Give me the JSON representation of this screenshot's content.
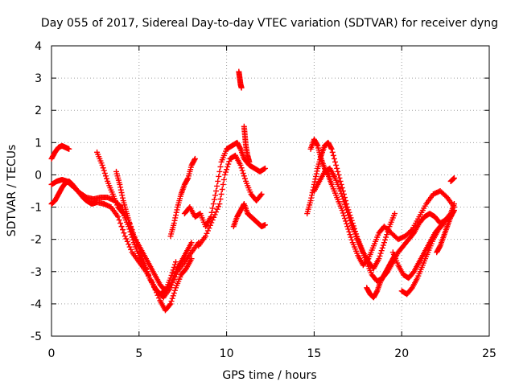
{
  "chart_data": {
    "type": "scatter",
    "title": "Day 055 of 2017, Sidereal Day-to-day VTEC variation (SDTVAR) for receiver dyng",
    "xlabel": "GPS time / hours",
    "ylabel": "SDTVAR / TECUs",
    "xlim": [
      0,
      25
    ],
    "ylim": [
      -5,
      4
    ],
    "xticks": [
      0,
      5,
      10,
      15,
      20,
      25
    ],
    "yticks": [
      -5,
      -4,
      -3,
      -2,
      -1,
      0,
      1,
      2,
      3,
      4
    ],
    "xtick_labels": [
      "0",
      "5",
      "10",
      "15",
      "20",
      "25"
    ],
    "ytick_labels": [
      "-5",
      "-4",
      "-3",
      "-2",
      "-1",
      "0",
      "1",
      "2",
      "3",
      "4"
    ],
    "grid": true,
    "legend": "none",
    "marker": "plus",
    "color": "#ff0000",
    "series": [
      {
        "x": [
          0.0,
          0.2,
          0.4,
          0.6,
          0.8,
          1.0
        ],
        "y": [
          0.5,
          0.7,
          0.85,
          0.9,
          0.85,
          0.8
        ]
      },
      {
        "x": [
          0.0,
          0.2,
          0.4,
          0.6,
          0.8,
          1.0,
          1.2,
          1.5,
          1.8,
          2.0,
          2.3,
          2.6,
          3.0,
          3.4,
          3.8,
          4.2,
          4.6,
          5.0,
          5.4,
          5.8,
          6.2,
          6.5,
          6.8,
          7.1,
          7.4,
          7.7,
          8.0
        ],
        "y": [
          -0.9,
          -0.8,
          -0.6,
          -0.4,
          -0.25,
          -0.2,
          -0.3,
          -0.5,
          -0.7,
          -0.8,
          -0.9,
          -0.85,
          -0.9,
          -1.0,
          -1.3,
          -1.9,
          -2.4,
          -2.7,
          -3.0,
          -3.4,
          -3.9,
          -4.2,
          -4.0,
          -3.5,
          -3.1,
          -2.9,
          -2.6
        ]
      },
      {
        "x": [
          0.0,
          0.3,
          0.6,
          0.9,
          1.2,
          1.6,
          2.0,
          2.4,
          2.8,
          3.2,
          3.6,
          4.0,
          4.4,
          4.8,
          5.2,
          5.6,
          6.0,
          6.4,
          6.8,
          7.2,
          7.6,
          8.0,
          8.4
        ],
        "y": [
          -0.3,
          -0.2,
          -0.15,
          -0.2,
          -0.35,
          -0.55,
          -0.7,
          -0.75,
          -0.7,
          -0.7,
          -0.8,
          -1.0,
          -1.4,
          -2.0,
          -2.6,
          -3.2,
          -3.6,
          -3.8,
          -3.5,
          -3.0,
          -2.7,
          -2.4,
          -2.1
        ]
      },
      {
        "x": [
          2.6,
          2.9,
          3.2,
          3.5,
          3.8,
          4.1,
          4.4,
          4.7,
          5.0,
          5.3,
          5.6,
          5.9,
          6.2,
          6.5,
          6.8,
          7.1
        ],
        "y": [
          0.7,
          0.3,
          -0.2,
          -0.6,
          -1.0,
          -1.2,
          -1.6,
          -2.1,
          -2.5,
          -2.8,
          -3.2,
          -3.5,
          -3.7,
          -3.6,
          -3.2,
          -2.7
        ]
      },
      {
        "x": [
          3.7,
          3.9,
          4.1,
          4.3,
          4.5,
          4.7,
          5.0,
          5.3,
          5.6,
          5.9,
          6.2,
          6.5,
          6.8,
          7.1,
          7.4,
          7.7,
          8.0
        ],
        "y": [
          0.1,
          -0.3,
          -0.8,
          -1.2,
          -1.6,
          -1.9,
          -2.2,
          -2.5,
          -2.8,
          -3.1,
          -3.4,
          -3.6,
          -3.4,
          -3.0,
          -2.7,
          -2.4,
          -2.1
        ]
      },
      {
        "x": [
          6.8,
          7.0,
          7.2,
          7.4,
          7.6,
          7.8,
          8.0,
          8.2
        ],
        "y": [
          -1.9,
          -1.5,
          -1.0,
          -0.6,
          -0.3,
          -0.1,
          0.3,
          0.5
        ]
      },
      {
        "x": [
          7.6,
          7.9,
          8.2,
          8.5,
          8.8,
          9.1,
          9.4,
          9.7,
          10.0,
          10.3,
          10.6,
          10.8,
          11.0,
          11.3,
          11.6,
          11.9,
          12.2
        ],
        "y": [
          -1.2,
          -1.0,
          -1.3,
          -1.2,
          -1.6,
          -1.3,
          -0.5,
          0.4,
          0.8,
          0.9,
          1.0,
          0.8,
          0.5,
          0.3,
          0.2,
          0.1,
          0.2
        ]
      },
      {
        "x": [
          8.4,
          8.8,
          9.2,
          9.6,
          9.9,
          10.2,
          10.5,
          10.8,
          11.1,
          11.4,
          11.7,
          12.0
        ],
        "y": [
          -2.2,
          -1.9,
          -1.4,
          -0.9,
          0.0,
          0.5,
          0.6,
          0.3,
          -0.2,
          -0.6,
          -0.8,
          -0.6
        ]
      },
      {
        "x": [
          10.4,
          10.6,
          10.8,
          11.0,
          11.2,
          11.4,
          11.6,
          11.8,
          12.0,
          12.2
        ],
        "y": [
          -1.6,
          -1.3,
          -1.1,
          -0.9,
          -1.2,
          -1.3,
          -1.4,
          -1.5,
          -1.6,
          -1.55
        ]
      },
      {
        "x": [
          10.7,
          10.75,
          10.8,
          10.85
        ],
        "y": [
          3.2,
          3.0,
          2.8,
          2.7
        ]
      },
      {
        "x": [
          11.0,
          11.05,
          11.1,
          11.2,
          11.3
        ],
        "y": [
          1.5,
          1.2,
          0.9,
          0.6,
          0.4
        ]
      },
      {
        "x": [
          14.6,
          14.8,
          15.0,
          15.2,
          15.4,
          15.6,
          15.8,
          16.0,
          16.3,
          16.6,
          16.9,
          17.2,
          17.5,
          17.8,
          18.1,
          18.4,
          18.7,
          19.0,
          19.3,
          19.6
        ],
        "y": [
          -1.2,
          -0.8,
          -0.3,
          0.2,
          0.6,
          0.9,
          1.0,
          0.8,
          0.2,
          -0.4,
          -1.0,
          -1.5,
          -2.0,
          -2.4,
          -2.7,
          -2.9,
          -2.6,
          -2.1,
          -1.6,
          -1.2
        ]
      },
      {
        "x": [
          14.8,
          15.0,
          15.2,
          15.4,
          15.6,
          15.8,
          16.0,
          16.3,
          16.6,
          16.9,
          17.2,
          17.5,
          17.8,
          18.1,
          18.4,
          18.7,
          19.0,
          19.4,
          19.8,
          20.2,
          20.6,
          21.0,
          21.4,
          21.8,
          22.2,
          22.6,
          23.0
        ],
        "y": [
          0.8,
          1.1,
          0.9,
          0.5,
          0.2,
          0.0,
          -0.3,
          -0.7,
          -1.1,
          -1.6,
          -2.1,
          -2.5,
          -2.8,
          -2.6,
          -2.2,
          -1.8,
          -1.6,
          -1.8,
          -2.0,
          -1.9,
          -1.7,
          -1.3,
          -0.9,
          -0.6,
          -0.5,
          -0.7,
          -1.0
        ]
      },
      {
        "x": [
          15.0,
          15.3,
          15.6,
          15.9,
          16.2,
          16.5,
          16.8,
          17.1,
          17.4,
          17.7,
          18.0,
          18.3,
          18.6,
          18.9,
          19.2,
          19.5,
          19.8,
          20.1,
          20.4,
          20.7,
          21.0,
          21.3,
          21.6,
          21.9,
          22.2,
          22.5,
          22.8
        ],
        "y": [
          -0.5,
          -0.2,
          0.1,
          0.2,
          -0.1,
          -0.5,
          -1.0,
          -1.5,
          -1.9,
          -2.3,
          -2.7,
          -3.1,
          -3.3,
          -3.2,
          -3.0,
          -2.7,
          -2.4,
          -2.2,
          -2.0,
          -1.8,
          -1.5,
          -1.3,
          -1.2,
          -1.3,
          -1.5,
          -1.4,
          -1.3
        ]
      },
      {
        "x": [
          18.0,
          18.2,
          18.4,
          18.6,
          18.8,
          19.0,
          19.2,
          19.4,
          19.6
        ],
        "y": [
          -3.5,
          -3.7,
          -3.8,
          -3.6,
          -3.3,
          -3.1,
          -2.9,
          -2.7,
          -2.5
        ]
      },
      {
        "x": [
          19.5,
          19.8,
          20.1,
          20.4,
          20.7,
          21.0,
          21.3,
          21.6,
          21.9,
          22.2,
          22.5,
          22.8,
          23.0
        ],
        "y": [
          -2.4,
          -2.8,
          -3.1,
          -3.2,
          -3.0,
          -2.7,
          -2.4,
          -2.1,
          -1.8,
          -1.6,
          -1.4,
          -1.2,
          -0.9
        ]
      },
      {
        "x": [
          20.0,
          20.3,
          20.6,
          20.9,
          21.2,
          21.5,
          21.8,
          22.1,
          22.4
        ],
        "y": [
          -3.6,
          -3.7,
          -3.5,
          -3.2,
          -2.8,
          -2.4,
          -2.0,
          -1.7,
          -1.5
        ]
      },
      {
        "x": [
          22.0,
          22.2,
          22.4,
          22.6,
          22.8,
          23.0
        ],
        "y": [
          -2.4,
          -2.2,
          -1.9,
          -1.6,
          -1.3,
          -1.1
        ]
      },
      {
        "x": [
          22.8,
          23.0
        ],
        "y": [
          -0.2,
          -0.1
        ]
      }
    ]
  }
}
